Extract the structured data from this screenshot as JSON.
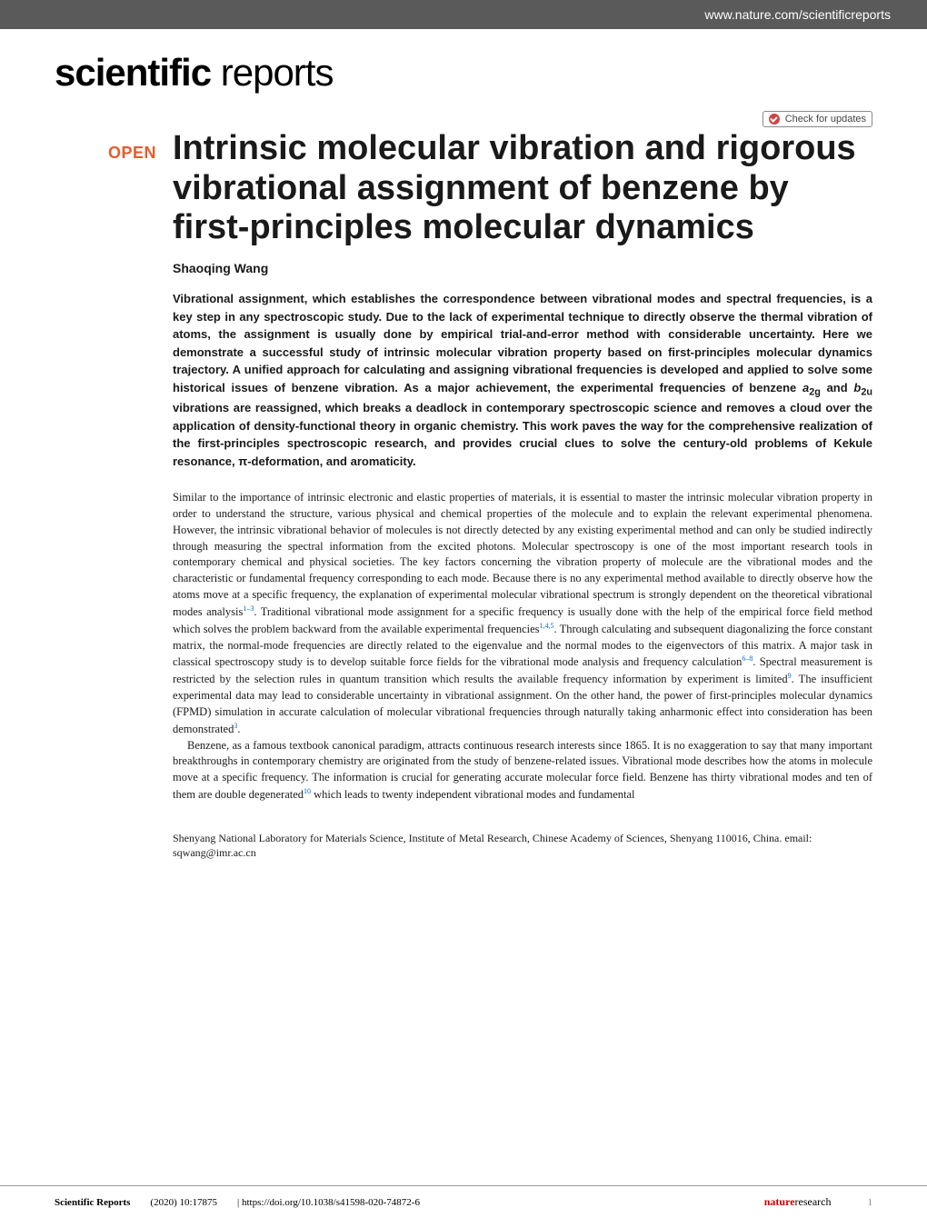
{
  "header": {
    "url": "www.nature.com/scientificreports"
  },
  "logo": {
    "bold": "scientific",
    "light": " reports"
  },
  "check_updates": "Check for updates",
  "open_badge": "OPEN",
  "title": "Intrinsic molecular vibration and rigorous vibrational assignment of benzene by first-principles molecular dynamics",
  "author": "Shaoqing Wang",
  "abstract_part1": "Vibrational assignment, which establishes the correspondence between vibrational modes and spectral frequencies, is a key step in any spectroscopic study. Due to the lack of experimental technique to directly observe the thermal vibration of atoms, the assignment is usually done by empirical trial-and-error method with considerable uncertainty. Here we demonstrate a successful study of intrinsic molecular vibration property based on first-principles molecular dynamics trajectory. A unified approach for calculating and assigning vibrational frequencies is developed and applied to solve some historical issues of benzene vibration. As a major achievement, the experimental frequencies of benzene ",
  "abstract_a2g": "a",
  "abstract_2g": "2g",
  "abstract_and": " and ",
  "abstract_b2u": "b",
  "abstract_2u": "2u",
  "abstract_part2": " vibrations are reassigned, which breaks a deadlock in contemporary spectroscopic science and removes a cloud over the application of density-functional theory in organic chemistry. This work paves the way for the comprehensive realization of the first-principles spectroscopic research, and provides crucial clues to solve the century-old problems of Kekule resonance, π-deformation, and aromaticity.",
  "body_p1_a": "Similar to the importance of intrinsic electronic and elastic properties of materials, it is essential to master the intrinsic molecular vibration property in order to understand the structure, various physical and chemical properties of the molecule and to explain the relevant experimental phenomena. However, the intrinsic vibrational behavior of molecules is not directly detected by any existing experimental method and can only be studied indirectly through measuring the spectral information from the excited photons. Molecular spectroscopy is one of the most important research tools in contemporary chemical and physical societies. The key factors concerning the vibration property of molecule are the vibrational modes and the characteristic or fundamental frequency corresponding to each mode. Because there is no any experimental method available to directly observe how the atoms move at a specific frequency, the explanation of experimental molecular vibrational spectrum is strongly dependent on the theoretical vibrational modes analysis",
  "ref_1_3": "1–3",
  "body_p1_b": ". Traditional vibrational mode assignment for a specific frequency is usually done with the help of the empirical force field method which solves the problem backward from the available experimental frequencies",
  "ref_145": "1,4,5",
  "body_p1_c": ". Through calculating and subsequent diagonalizing the force constant matrix, the normal-mode frequencies are directly related to the eigenvalue and the normal modes to the eigenvectors of this matrix. A major task in classical spectroscopy study is to develop suitable force fields for the vibrational mode analysis and frequency calculation",
  "ref_6_8": "6–8",
  "body_p1_d": ". Spectral measurement is restricted by the selection rules in quantum transition which results the available frequency information by experiment is limited",
  "ref_9": "9",
  "body_p1_e": ". The insufficient experimental data may lead to considerable uncertainty in vibrational assignment. On the other hand, the power of first-principles molecular dynamics (FPMD) simulation in accurate calculation of molecular vibrational frequencies through naturally taking anharmonic effect into consideration has been demonstrated",
  "ref_3": "3",
  "body_p1_f": ".",
  "body_p2_a": "Benzene, as a famous textbook canonical paradigm, attracts continuous research interests since 1865. It is no exaggeration to say that many important breakthroughs in contemporary chemistry are originated from the study of benzene-related issues. Vibrational mode describes how the atoms in molecule move at a specific frequency. The information is crucial for generating accurate molecular force field. Benzene has thirty vibrational modes and ten of them are double degenerated",
  "ref_10": "10",
  "body_p2_b": " which leads to twenty independent vibrational modes and fundamental",
  "affiliation": "Shenyang National Laboratory for Materials Science, Institute of Metal Research, Chinese Academy of Sciences, Shenyang 110016, China. email: sqwang@imr.ac.cn",
  "footer": {
    "journal": "Scientific Reports",
    "citation": "(2020) 10:17875",
    "doi": "| https://doi.org/10.1038/s41598-020-74872-6",
    "publisher_red": "nature",
    "publisher_black": "research",
    "page": "1"
  }
}
